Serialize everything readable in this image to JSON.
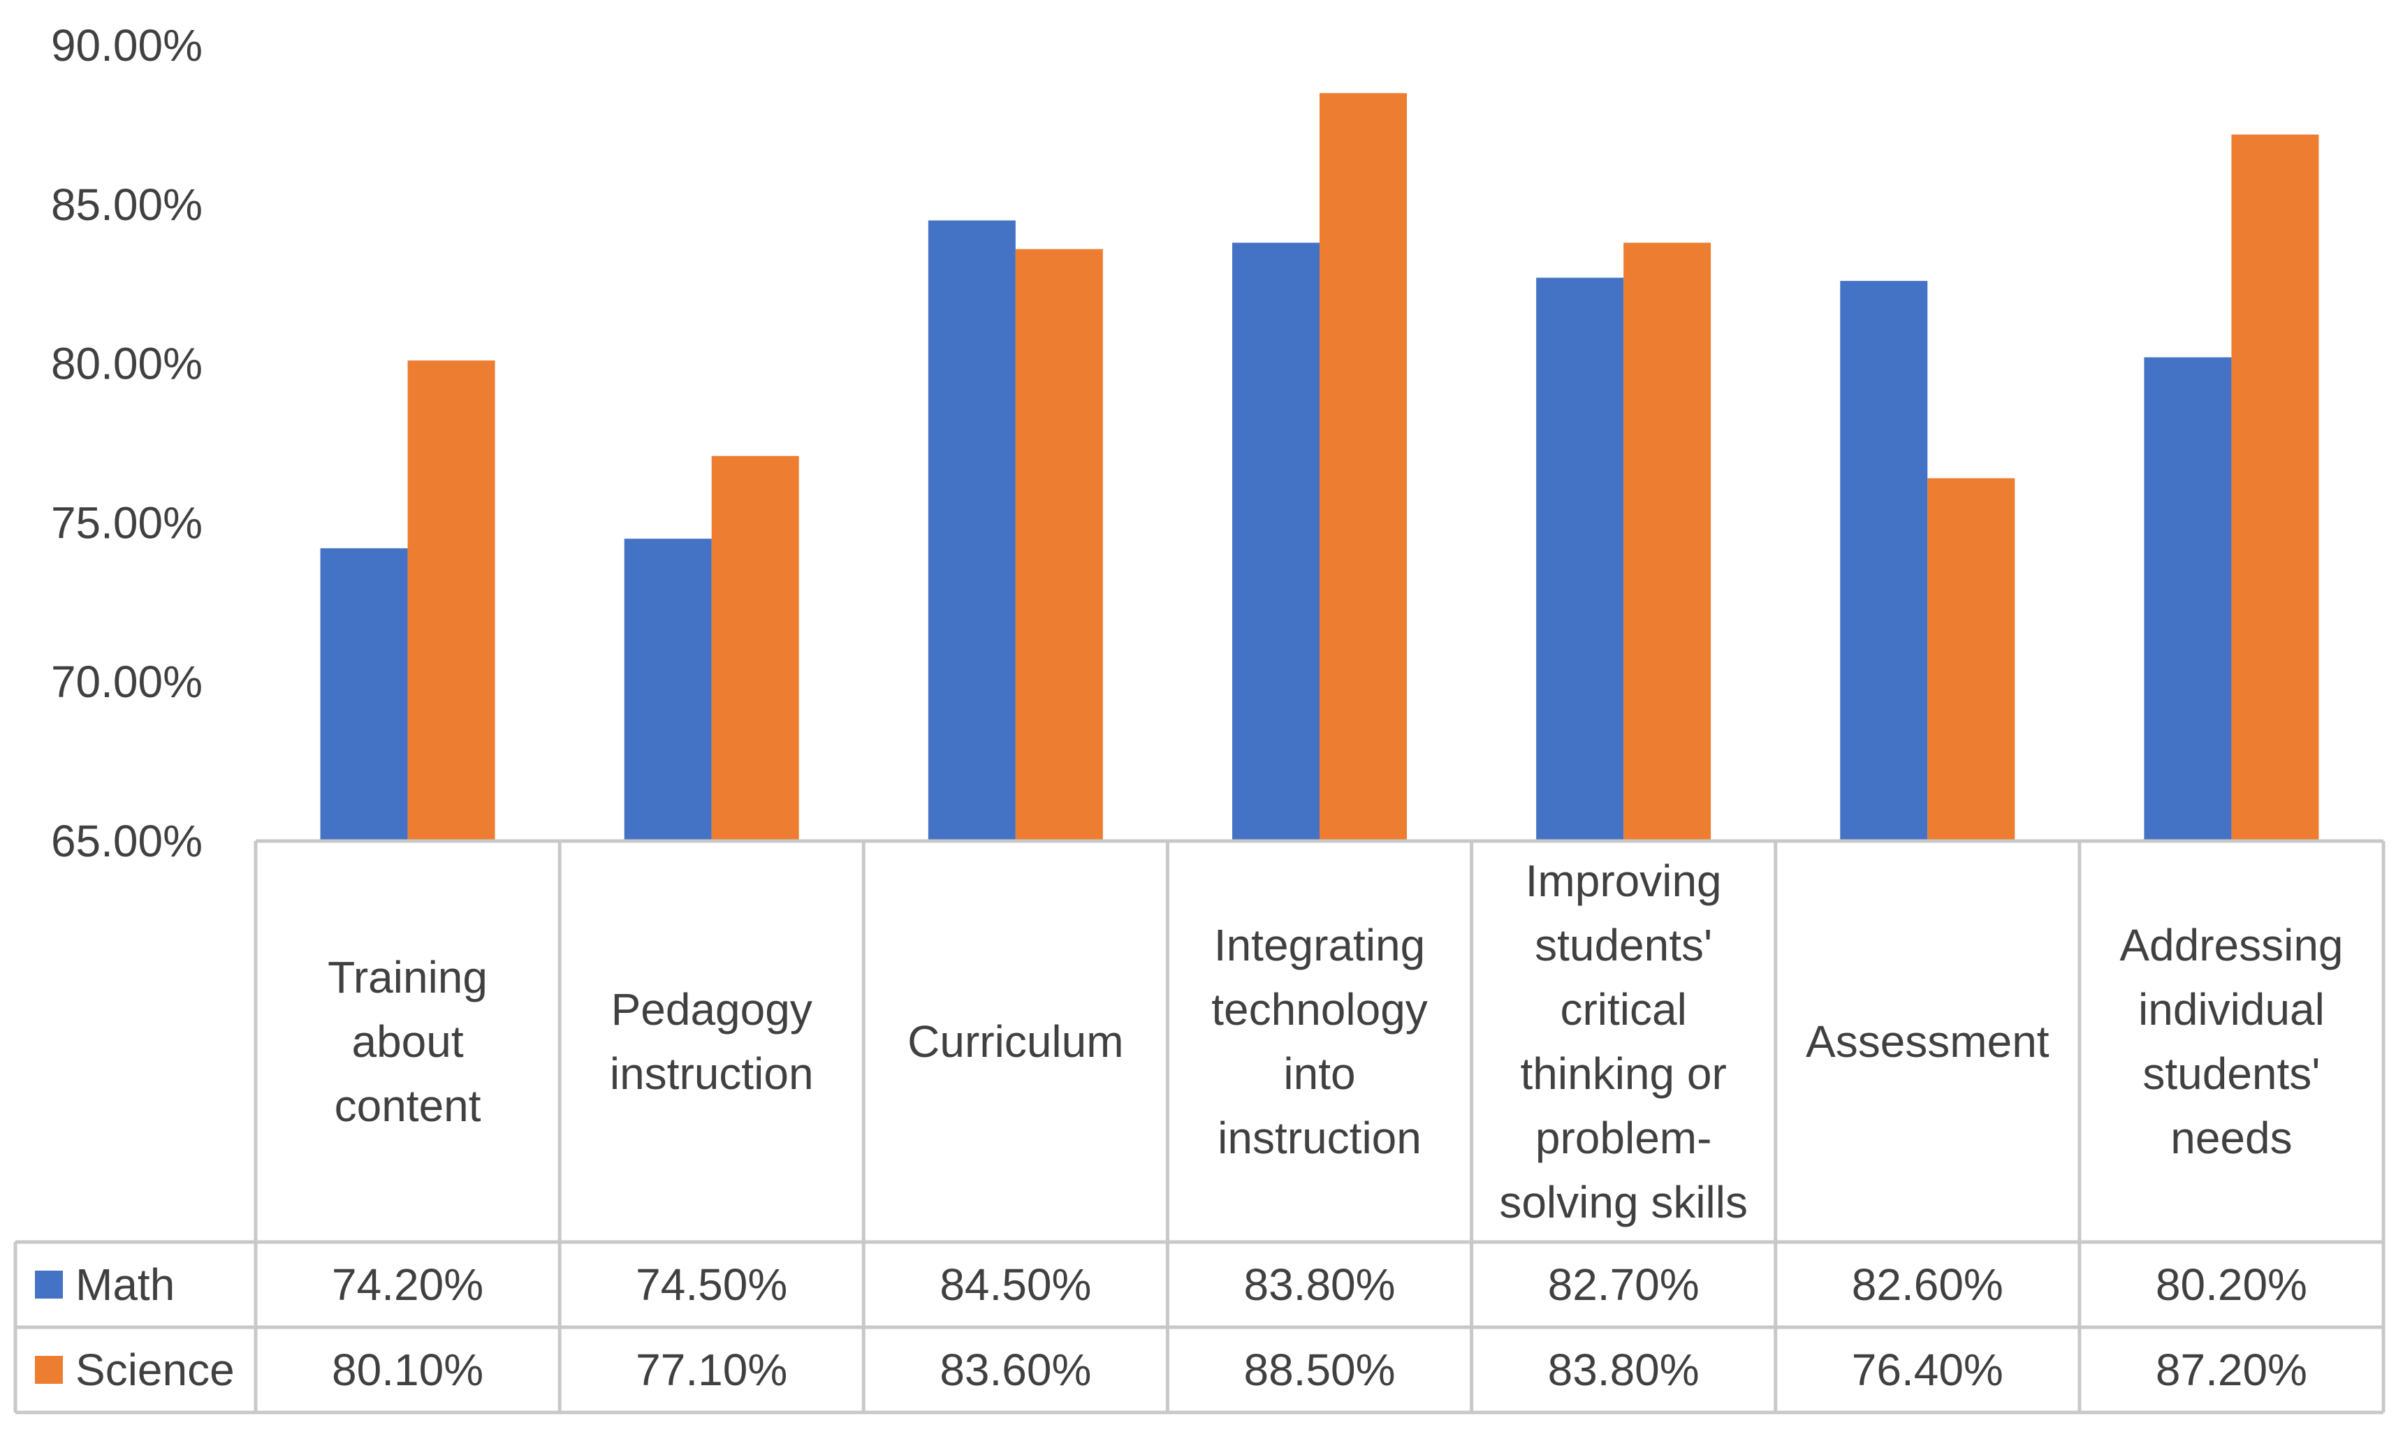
{
  "chart_data": {
    "type": "bar",
    "title": "",
    "xlabel": "",
    "ylabel": "",
    "ylim": [
      0.65,
      0.9
    ],
    "ytick_values": [
      0.65,
      0.7,
      0.75,
      0.8,
      0.85,
      0.9
    ],
    "ytick_labels": [
      "65.00%",
      "70.00%",
      "75.00%",
      "80.00%",
      "85.00%",
      "90.00%"
    ],
    "categories": [
      [
        "Training",
        "about",
        "content"
      ],
      [
        "Pedagogy",
        "instruction"
      ],
      [
        "Curriculum"
      ],
      [
        "Integrating",
        "technology",
        "into",
        "instruction"
      ],
      [
        "Improving",
        "students'",
        "critical",
        "thinking or",
        "problem-",
        "solving skills"
      ],
      [
        "Assessment"
      ],
      [
        "Addressing",
        "individual",
        "students'",
        "needs"
      ]
    ],
    "series": [
      {
        "name": "Math",
        "color": "#4472C4",
        "values": [
          0.742,
          0.745,
          0.845,
          0.838,
          0.827,
          0.826,
          0.802
        ],
        "labels": [
          "74.20%",
          "74.50%",
          "84.50%",
          "83.80%",
          "82.70%",
          "82.60%",
          "80.20%"
        ]
      },
      {
        "name": "Science",
        "color": "#ED7D31",
        "values": [
          0.801,
          0.771,
          0.836,
          0.885,
          0.838,
          0.764,
          0.872
        ],
        "labels": [
          "80.10%",
          "77.10%",
          "83.60%",
          "88.50%",
          "83.80%",
          "76.40%",
          "87.20%"
        ]
      }
    ],
    "data_table": true,
    "legend": "in-table"
  }
}
